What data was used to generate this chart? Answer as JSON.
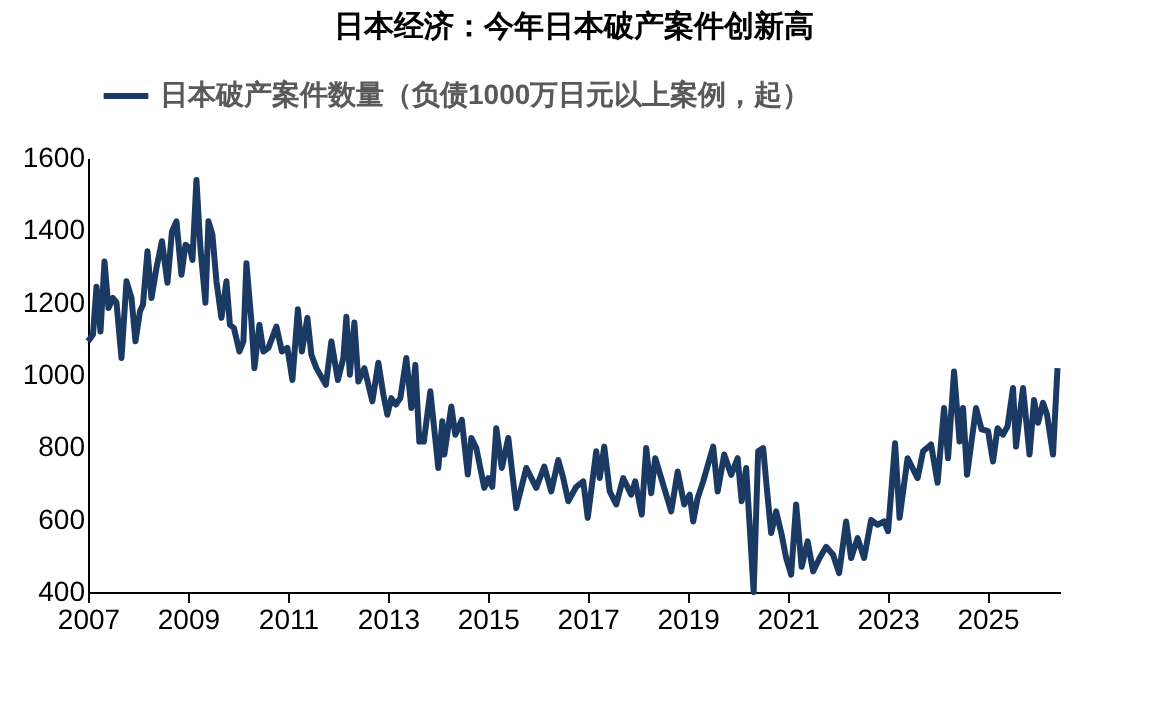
{
  "chart_data": {
    "type": "line",
    "title": "日本经济：今年日本破产案件创新高",
    "x": [
      2007.0,
      2007.1,
      2007.17,
      2007.25,
      2007.33,
      2007.41,
      2007.5,
      2007.57,
      2007.67,
      2007.77,
      2007.87,
      2007.95,
      2008.04,
      2008.1,
      2008.19,
      2008.27,
      2008.37,
      2008.48,
      2008.59,
      2008.68,
      2008.77,
      2008.87,
      2008.95,
      2009.04,
      2009.09,
      2009.17,
      2009.25,
      2009.35,
      2009.41,
      2009.49,
      2009.57,
      2009.67,
      2009.77,
      2009.84,
      2009.92,
      2010.03,
      2010.11,
      2010.17,
      2010.27,
      2010.33,
      2010.43,
      2010.51,
      2010.61,
      2010.77,
      2010.88,
      2010.99,
      2011.09,
      2011.2,
      2011.28,
      2011.39,
      2011.47,
      2011.57,
      2011.76,
      2011.87,
      2012.0,
      2012.11,
      2012.17,
      2012.24,
      2012.33,
      2012.41,
      2012.53,
      2012.69,
      2012.81,
      2012.91,
      2012.99,
      2013.07,
      2013.16,
      2013.25,
      2013.37,
      2013.47,
      2013.55,
      2013.63,
      2013.72,
      2013.85,
      2014.01,
      2014.09,
      2014.13,
      2014.27,
      2014.35,
      2014.48,
      2014.6,
      2014.67,
      2014.77,
      2014.93,
      2015.01,
      2015.09,
      2015.17,
      2015.28,
      2015.41,
      2015.57,
      2015.77,
      2015.97,
      2016.13,
      2016.27,
      2016.41,
      2016.51,
      2016.61,
      2016.77,
      2016.91,
      2017.0,
      2017.17,
      2017.24,
      2017.33,
      2017.44,
      2017.57,
      2017.71,
      2017.87,
      2017.95,
      2018.08,
      2018.17,
      2018.27,
      2018.35,
      2018.51,
      2018.67,
      2018.8,
      2018.93,
      2019.04,
      2019.11,
      2019.2,
      2019.31,
      2019.51,
      2019.6,
      2019.73,
      2019.87,
      2020.0,
      2020.08,
      2020.17,
      2020.32,
      2020.41,
      2020.51,
      2020.57,
      2020.67,
      2020.77,
      2020.88,
      2020.97,
      2021.07,
      2021.17,
      2021.28,
      2021.4,
      2021.51,
      2021.64,
      2021.77,
      2021.91,
      2022.03,
      2022.17,
      2022.27,
      2022.4,
      2022.53,
      2022.67,
      2022.8,
      2022.93,
      2023.01,
      2023.15,
      2023.24,
      2023.4,
      2023.6,
      2023.71,
      2023.87,
      2024.0,
      2024.13,
      2024.21,
      2024.33,
      2024.44,
      2024.51,
      2024.59,
      2024.77,
      2024.88,
      2025.01,
      2025.11,
      2025.2,
      2025.31,
      2025.4,
      2025.51,
      2025.57,
      2025.71,
      2025.84,
      2025.93,
      2026.01,
      2026.11,
      2026.19,
      2026.31,
      2026.4
    ],
    "series": [
      {
        "name": "日本破产案件数量（负债1000万日元以上案例，起）",
        "color": "#1b3a63",
        "values": [
          1093,
          1112,
          1244,
          1120,
          1314,
          1185,
          1213,
          1200,
          1047,
          1259,
          1213,
          1093,
          1176,
          1194,
          1342,
          1213,
          1296,
          1370,
          1255,
          1397,
          1425,
          1277,
          1360,
          1351,
          1318,
          1539,
          1351,
          1200,
          1425,
          1388,
          1259,
          1158,
          1259,
          1139,
          1130,
          1065,
          1093,
          1309,
          1148,
          1019,
          1139,
          1065,
          1075,
          1134,
          1065,
          1075,
          986,
          1182,
          1065,
          1158,
          1056,
          1019,
          973,
          1093,
          986,
          1047,
          1161,
          1001,
          1145,
          982,
          1019,
          927,
          1034,
          946,
          890,
          936,
          918,
          936,
          1047,
          909,
          1028,
          816,
          816,
          955,
          743,
          872,
          780,
          913,
          835,
          876,
          725,
          826,
          798,
          688,
          715,
          691,
          853,
          743,
          826,
          632,
          743,
          688,
          747,
          678,
          765,
          715,
          651,
          691,
          706,
          605,
          789,
          715,
          802,
          678,
          642,
          715,
          669,
          706,
          614,
          798,
          673,
          770,
          697,
          623,
          733,
          642,
          669,
          595,
          660,
          706,
          802,
          678,
          780,
          724,
          770,
          651,
          743,
          400,
          789,
          798,
          706,
          563,
          623,
          559,
          494,
          448,
          642,
          470,
          540,
          457,
          494,
          525,
          503,
          452,
          595,
          494,
          549,
          494,
          599,
          586,
          595,
          568,
          811,
          605,
          770,
          715,
          789,
          808,
          702,
          909,
          770,
          1010,
          816,
          909,
          724,
          909,
          850,
          845,
          761,
          853,
          835,
          858,
          964,
          802,
          964,
          780,
          931,
          868,
          923,
          891,
          780,
          1019
        ]
      }
    ],
    "xlim": [
      2007,
      2026.45
    ],
    "xticks": [
      2007,
      2009,
      2011,
      2013,
      2015,
      2017,
      2019,
      2021,
      2023,
      2025
    ],
    "ylim": [
      400,
      1600
    ],
    "yticks": [
      400,
      600,
      800,
      1000,
      1200,
      1400,
      1600
    ],
    "grid": false,
    "legend": "top",
    "line_style": "solid",
    "marker": "none"
  }
}
